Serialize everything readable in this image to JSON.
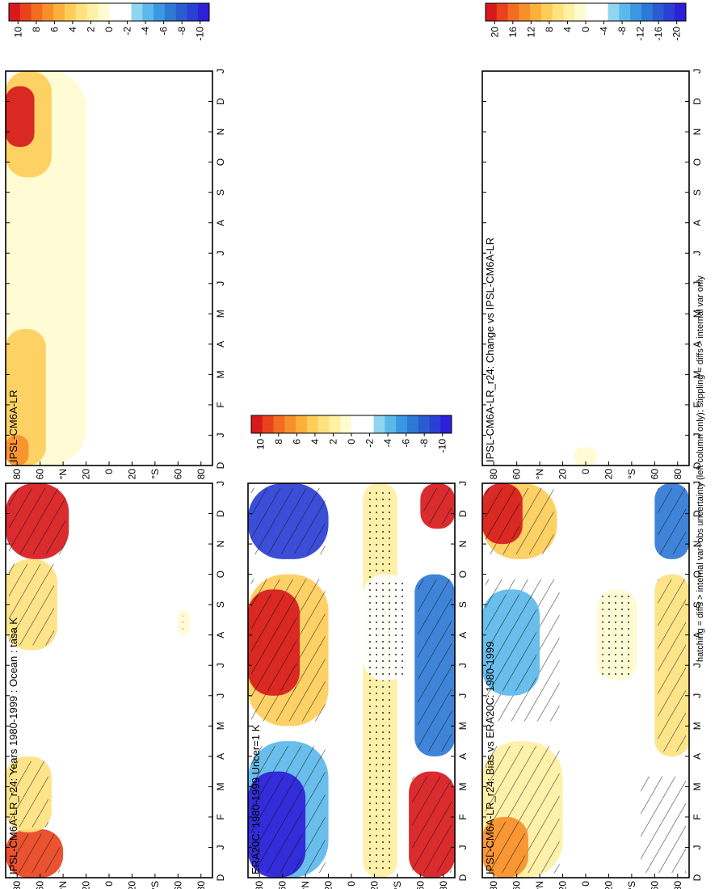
{
  "figure": {
    "footnote": "hatching = diffs > internal var+obs uncertainty (left column only); stippling = diffs > internal var only"
  },
  "colors": {
    "scale10": [
      "#d7191c",
      "#e8431e",
      "#f26c21",
      "#f78f2a",
      "#fbb03b",
      "#fdcd59",
      "#fee27f",
      "#fff0a3",
      "#fffbd0",
      "#ffffff",
      "#ffffff",
      "#8fd4f0",
      "#5cb8ea",
      "#3a98e0",
      "#2f79d6",
      "#2b5bd0",
      "#2a3fd4",
      "#2e1fd8"
    ],
    "scale20": [
      "#d7191c",
      "#e8431e",
      "#f26c21",
      "#f78f2a",
      "#fbb03b",
      "#fdcd59",
      "#fee27f",
      "#fff0a3",
      "#fffbd0",
      "#ffffff",
      "#ffffff",
      "#8fd4f0",
      "#5cb8ea",
      "#3a98e0",
      "#2f79d6",
      "#2b5bd0",
      "#2a3fd4",
      "#2e1fd8"
    ]
  },
  "chart_data": [
    {
      "type": "heatmap",
      "title": "IPSL-CM6A-LR_r24: Years 1980-1999 : Ocean : tasa K",
      "x_ticks": [
        "D",
        "J",
        "F",
        "M",
        "A",
        "M",
        "J",
        "J",
        "A",
        "S",
        "O",
        "N",
        "D",
        "J"
      ],
      "y_ticks": [
        "80",
        "60",
        "°N",
        "20",
        "0",
        "20",
        "°S",
        "60",
        "80"
      ],
      "colorbar_ticks": [
        "10",
        "8",
        "6",
        "4",
        "2",
        "0",
        "-2",
        "-4",
        "-6",
        "-8",
        "-10"
      ],
      "hatching": true,
      "stippling": true,
      "features": [
        {
          "x": [
            0.0,
            1.6
          ],
          "y": [
            40,
            90
          ],
          "value": 8
        },
        {
          "x": [
            1.5,
            4.0
          ],
          "y": [
            50,
            90
          ],
          "value": 3
        },
        {
          "x": [
            7.5,
            10.5
          ],
          "y": [
            45,
            90
          ],
          "value": 3
        },
        {
          "x": [
            10.5,
            13.0
          ],
          "y": [
            35,
            90
          ],
          "value": 10
        },
        {
          "x": [
            8.0,
            8.8
          ],
          "y": [
            -70,
            -60
          ],
          "value": 1
        }
      ]
    },
    {
      "type": "heatmap",
      "title": "IPSL-CM6A-LR",
      "x_ticks": [
        "D",
        "J",
        "F",
        "M",
        "A",
        "M",
        "J",
        "J",
        "A",
        "S",
        "O",
        "N",
        "D",
        "J"
      ],
      "y_ticks": [
        "80",
        "60",
        "°N",
        "20",
        "0",
        "20",
        "°S",
        "60",
        "80"
      ],
      "colorbar_ticks": [
        "10",
        "8",
        "6",
        "4",
        "2",
        "0",
        "-2",
        "-4",
        "-6",
        "-8",
        "-10"
      ],
      "hatching": false,
      "stippling": false,
      "features": [
        {
          "x": [
            0.0,
            13.0
          ],
          "y": [
            20,
            90
          ],
          "value": 1
        },
        {
          "x": [
            0.0,
            4.5
          ],
          "y": [
            55,
            90
          ],
          "value": 4
        },
        {
          "x": [
            9.5,
            13.0
          ],
          "y": [
            50,
            90
          ],
          "value": 4
        },
        {
          "x": [
            10.5,
            12.5
          ],
          "y": [
            65,
            90
          ],
          "value": 10
        },
        {
          "x": [
            0.0,
            1.0
          ],
          "y": [
            70,
            90
          ],
          "value": 6
        }
      ]
    },
    {
      "type": "heatmap",
      "title": "ERA20C: 1980-1999 Uncer=1 K",
      "x_ticks": [
        "D",
        "J",
        "F",
        "M",
        "A",
        "M",
        "J",
        "J",
        "A",
        "S",
        "O",
        "N",
        "D",
        "J"
      ],
      "y_ticks": [
        "80",
        "60",
        "°N",
        "20",
        "0",
        "20",
        "°S",
        "60",
        "80"
      ],
      "colorbar_ticks": [
        "10",
        "8",
        "6",
        "4",
        "2",
        "0",
        "-2",
        "-4",
        "-6",
        "-8",
        "-10"
      ],
      "hatching": true,
      "stippling": true,
      "features": [
        {
          "x": [
            0.0,
            4.5
          ],
          "y": [
            20,
            90
          ],
          "value": -4
        },
        {
          "x": [
            0.0,
            3.5
          ],
          "y": [
            40,
            90
          ],
          "value": -10
        },
        {
          "x": [
            5.0,
            10.0
          ],
          "y": [
            20,
            90
          ],
          "value": 4
        },
        {
          "x": [
            6.0,
            9.5
          ],
          "y": [
            45,
            90
          ],
          "value": 10
        },
        {
          "x": [
            10.5,
            13.0
          ],
          "y": [
            20,
            90
          ],
          "value": -8
        },
        {
          "x": [
            0.0,
            13.0
          ],
          "y": [
            -40,
            -10
          ],
          "value": 2
        },
        {
          "x": [
            6.5,
            10.0
          ],
          "y": [
            -50,
            -10
          ],
          "value": -2
        },
        {
          "x": [
            0.0,
            3.5
          ],
          "y": [
            -90,
            -50
          ],
          "value": 10
        },
        {
          "x": [
            4.0,
            10.0
          ],
          "y": [
            -90,
            -55
          ],
          "value": -6
        },
        {
          "x": [
            11.5,
            13.0
          ],
          "y": [
            -90,
            -60
          ],
          "value": 10
        }
      ]
    },
    {
      "type": "heatmap",
      "title": "IPSL-CM6A-LR_r24: Bias vs ERA20C: 1980-1999",
      "x_ticks": [
        "D",
        "J",
        "F",
        "M",
        "A",
        "M",
        "J",
        "J",
        "A",
        "S",
        "O",
        "N",
        "D",
        "J"
      ],
      "y_ticks": [
        "80",
        "60",
        "°N",
        "20",
        "0",
        "20",
        "°S",
        "60",
        "80"
      ],
      "colorbar_ticks": [
        "20",
        "16",
        "12",
        "8",
        "4",
        "0",
        "-4",
        "-8",
        "-12",
        "-16",
        "-20"
      ],
      "hatching": true,
      "stippling": true,
      "features": [
        {
          "x": [
            0.0,
            4.5
          ],
          "y": [
            20,
            90
          ],
          "value": 4
        },
        {
          "x": [
            0.0,
            2.0
          ],
          "y": [
            50,
            90
          ],
          "value": 12
        },
        {
          "x": [
            5.0,
            10.0
          ],
          "y": [
            20,
            90
          ],
          "value": -4
        },
        {
          "x": [
            6.0,
            9.5
          ],
          "y": [
            40,
            90
          ],
          "value": -8
        },
        {
          "x": [
            10.5,
            13.0
          ],
          "y": [
            25,
            90
          ],
          "value": 8
        },
        {
          "x": [
            11.0,
            13.0
          ],
          "y": [
            55,
            90
          ],
          "value": 20
        },
        {
          "x": [
            6.5,
            9.5
          ],
          "y": [
            -45,
            -10
          ],
          "value": 2
        },
        {
          "x": [
            0.0,
            3.5
          ],
          "y": [
            -90,
            -45
          ],
          "value": -4
        },
        {
          "x": [
            4.0,
            10.0
          ],
          "y": [
            -90,
            -60
          ],
          "value": 6
        },
        {
          "x": [
            10.5,
            13.0
          ],
          "y": [
            -90,
            -60
          ],
          "value": -12
        }
      ]
    },
    {
      "type": "heatmap",
      "title": "IPSL-CM6A-LR_r24: Change vs IPSL-CM6A-LR",
      "x_ticks": [
        "D",
        "J",
        "F",
        "M",
        "A",
        "M",
        "J",
        "J",
        "A",
        "S",
        "O",
        "N",
        "D",
        "J"
      ],
      "y_ticks": [
        "80",
        "60",
        "°N",
        "20",
        "0",
        "20",
        "°S",
        "60",
        "80"
      ],
      "colorbar_ticks": [
        "20",
        "16",
        "12",
        "8",
        "4",
        "0",
        "-4",
        "-8",
        "-12",
        "-16",
        "-20"
      ],
      "hatching": false,
      "stippling": false,
      "features": [
        {
          "x": [
            0.0,
            0.6
          ],
          "y": [
            -10,
            10
          ],
          "value": 1
        }
      ]
    }
  ]
}
